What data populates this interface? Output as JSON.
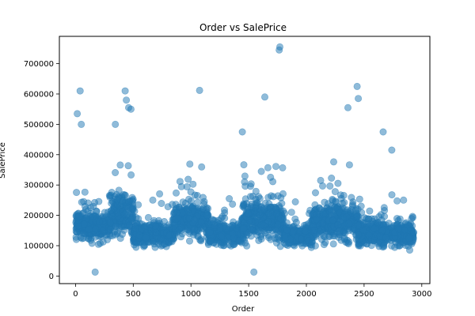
{
  "chart_data": {
    "type": "scatter",
    "title": "Order vs SalePrice",
    "xlabel": "Order",
    "ylabel": "SalePrice",
    "xlim": [
      -140,
      3070
    ],
    "ylim": [
      -25000,
      790000
    ],
    "xticks": [
      0,
      500,
      1000,
      1500,
      2000,
      2500,
      3000
    ],
    "yticks": [
      0,
      100000,
      200000,
      300000,
      400000,
      500000,
      600000,
      700000
    ],
    "grid": false,
    "point_color": "#1f77b4",
    "point_alpha": 0.5,
    "point_count": 2930,
    "x_range_observed": [
      1,
      2930
    ],
    "notable_points": [
      {
        "x": 15,
        "y": 535000
      },
      {
        "x": 40,
        "y": 610000
      },
      {
        "x": 50,
        "y": 500000
      },
      {
        "x": 170,
        "y": 13000
      },
      {
        "x": 345,
        "y": 500000
      },
      {
        "x": 430,
        "y": 610000
      },
      {
        "x": 440,
        "y": 580000
      },
      {
        "x": 460,
        "y": 555000
      },
      {
        "x": 480,
        "y": 550000
      },
      {
        "x": 1075,
        "y": 612000
      },
      {
        "x": 1445,
        "y": 475000
      },
      {
        "x": 1545,
        "y": 13000
      },
      {
        "x": 1640,
        "y": 590000
      },
      {
        "x": 1765,
        "y": 745000
      },
      {
        "x": 1770,
        "y": 755000
      },
      {
        "x": 2360,
        "y": 555000
      },
      {
        "x": 2440,
        "y": 625000
      },
      {
        "x": 2450,
        "y": 585000
      },
      {
        "x": 2665,
        "y": 475000
      },
      {
        "x": 2740,
        "y": 415000
      }
    ],
    "segments": [
      {
        "x_start": 1,
        "x_end": 300,
        "median": 165000,
        "spread": 55000
      },
      {
        "x_start": 300,
        "x_end": 500,
        "median": 200000,
        "spread": 85000
      },
      {
        "x_start": 500,
        "x_end": 850,
        "median": 140000,
        "spread": 45000
      },
      {
        "x_start": 850,
        "x_end": 1150,
        "median": 185000,
        "spread": 75000
      },
      {
        "x_start": 1150,
        "x_end": 1450,
        "median": 140000,
        "spread": 45000
      },
      {
        "x_start": 1450,
        "x_end": 1800,
        "median": 185000,
        "spread": 80000
      },
      {
        "x_start": 1800,
        "x_end": 2050,
        "median": 135000,
        "spread": 40000
      },
      {
        "x_start": 2050,
        "x_end": 2450,
        "median": 180000,
        "spread": 80000
      },
      {
        "x_start": 2450,
        "x_end": 2930,
        "median": 140000,
        "spread": 50000
      }
    ]
  }
}
